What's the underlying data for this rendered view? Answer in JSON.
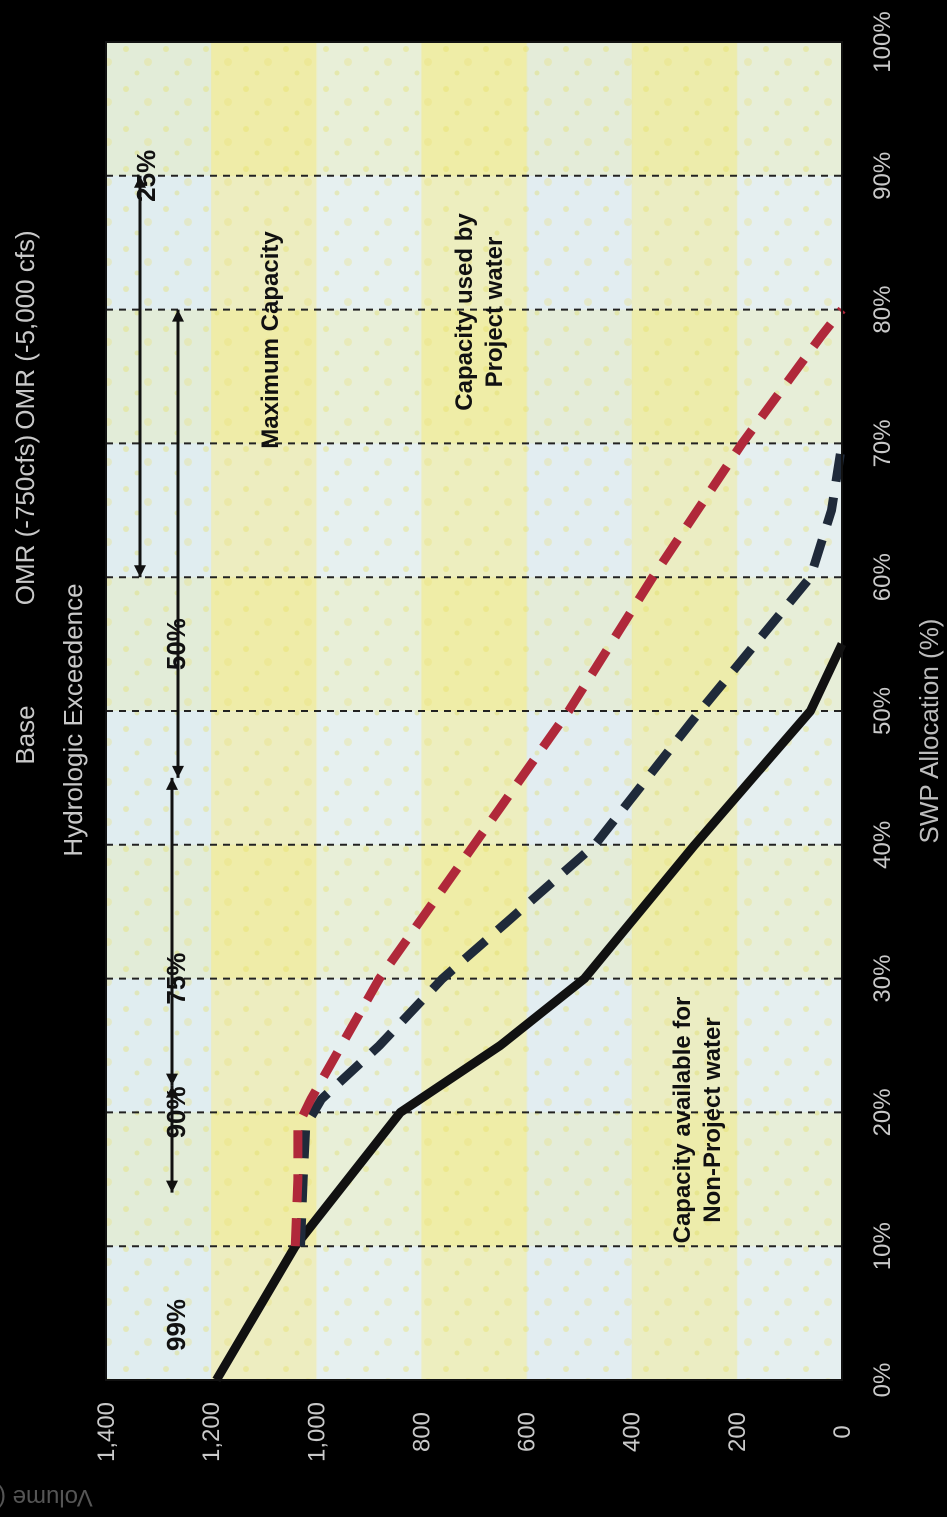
{
  "chart_data": {
    "type": "line",
    "title": "Hydrologic Exceedence",
    "xlabel": "SWP Allocation (%)",
    "ylabel": "Volume (taf)",
    "xlim": [
      0,
      100
    ],
    "ylim": [
      0,
      1400
    ],
    "x_ticks": [
      "0%",
      "10%",
      "20%",
      "30%",
      "40%",
      "50%",
      "60%",
      "70%",
      "80%",
      "90%",
      "100%"
    ],
    "y_ticks": [
      "0",
      "200",
      "400",
      "600",
      "800",
      "1,000",
      "1,200",
      "1,400"
    ],
    "grid": "dashed vertical lines every 10%",
    "legend_position": "top",
    "series": [
      {
        "name": "Base",
        "style": "solid",
        "color": "#111111",
        "points": [
          [
            0,
            1190
          ],
          [
            10,
            1040
          ],
          [
            20,
            840
          ],
          [
            25,
            650
          ],
          [
            30,
            490
          ],
          [
            40,
            280
          ],
          [
            50,
            60
          ],
          [
            55,
            0
          ]
        ]
      },
      {
        "name": "OMR (-750cfs)",
        "style": "dashed",
        "color": "#1f2a3a",
        "points": [
          [
            10,
            1030
          ],
          [
            15,
            1025
          ],
          [
            19,
            1020
          ],
          [
            21,
            990
          ],
          [
            25,
            880
          ],
          [
            30,
            760
          ],
          [
            40,
            470
          ],
          [
            50,
            270
          ],
          [
            60,
            60
          ],
          [
            65,
            20
          ],
          [
            70,
            0
          ]
        ]
      },
      {
        "name": "OMR (-5,000 cfs)",
        "style": "dashed",
        "color": "#b0283a",
        "points": [
          [
            10,
            1040
          ],
          [
            15,
            1035
          ],
          [
            19,
            1035
          ],
          [
            21,
            1010
          ],
          [
            30,
            880
          ],
          [
            40,
            700
          ],
          [
            50,
            520
          ],
          [
            60,
            360
          ],
          [
            70,
            190
          ],
          [
            78,
            40
          ],
          [
            80,
            0
          ]
        ]
      }
    ],
    "exceedence_markers": [
      {
        "label": "99%",
        "x": 0
      },
      {
        "label": "90%",
        "x": 20,
        "span": [
          14,
          22
        ]
      },
      {
        "label": "75%",
        "x": 30,
        "span": [
          22,
          45
        ]
      },
      {
        "label": "50%",
        "x": 55,
        "span": [
          45,
          80
        ]
      },
      {
        "label": "25%",
        "x": 90,
        "span": [
          60,
          90
        ]
      }
    ],
    "annotations": [
      "Maximum Capacity",
      "Capacity used by Project water",
      "Capacity available for Non-Project water"
    ]
  }
}
